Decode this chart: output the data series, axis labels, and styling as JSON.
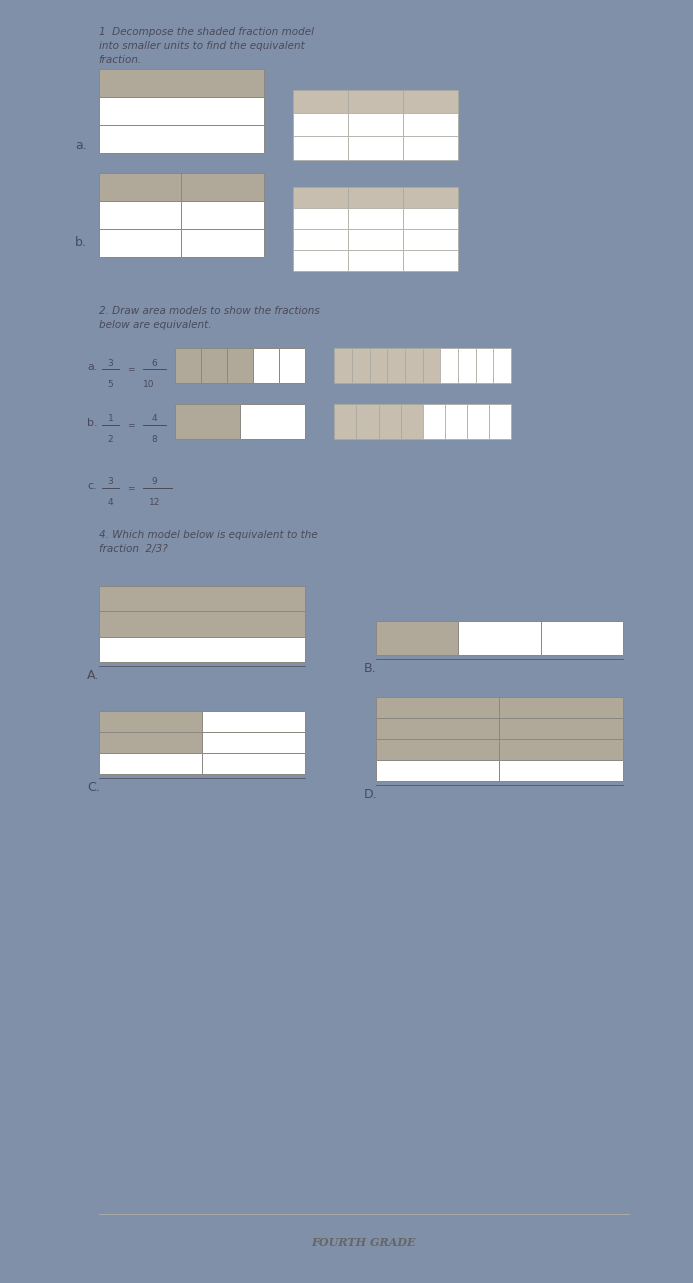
{
  "bg_color": "#8090a8",
  "paper_color": "#f0ede8",
  "text_color": "#4a4a5a",
  "shade1": "#b0a898",
  "shade2": "#c8beb0",
  "grid_ec": "#8a8880",
  "title1": "1  Decompose the shaded fraction model\ninto smaller units to find the equivalent\nfraction.",
  "title2": "2. Draw area models to show the fractions\nbelow are equivalent.",
  "title4": "4. Which model below is equivalent to the\nfraction  2/3?",
  "footer": "FOURTH GRADE",
  "label_a": "a.",
  "label_b": "b.",
  "label_A": "A.",
  "label_B": "B.",
  "label_C": "C.",
  "label_D": "D."
}
